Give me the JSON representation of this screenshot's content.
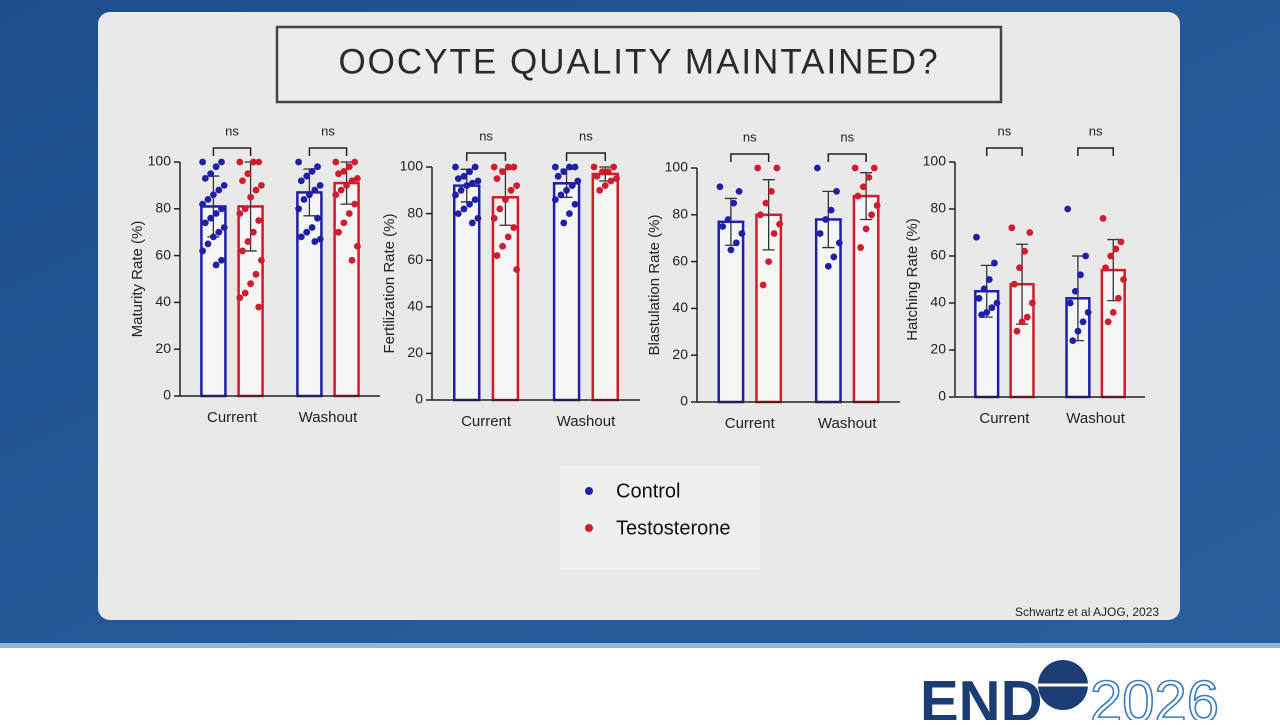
{
  "title": "OOCYTE QUALITY MAINTAINED?",
  "legend": {
    "control": "Control",
    "testosterone": "Testosterone"
  },
  "citation": "Schwartz et al AJOG, 2023",
  "logo": {
    "left": "END",
    "right": "2026"
  },
  "chart_data": [
    {
      "type": "bar",
      "y_label": "Maturity Rate (%)",
      "categories": [
        "Current",
        "Washout"
      ],
      "annotations": [
        "ns",
        "ns"
      ],
      "ylim": [
        0,
        100
      ],
      "yticks": [
        0,
        20,
        40,
        60,
        80,
        100
      ],
      "series": [
        {
          "name": "Control",
          "color": "#1f1fa8",
          "values": [
            81,
            87
          ],
          "errors": [
            13,
            10
          ],
          "points": [
            [
              100,
              100,
              98,
              95,
              93,
              90,
              88,
              86,
              84,
              82,
              80,
              78,
              76,
              74,
              72,
              70,
              68,
              65,
              62,
              58,
              56
            ],
            [
              100,
              98,
              96,
              94,
              92,
              90,
              88,
              86,
              84,
              80,
              76,
              72,
              70,
              68,
              67,
              66
            ]
          ]
        },
        {
          "name": "Testosterone",
          "color": "#d01c2c",
          "values": [
            81,
            91
          ],
          "errors": [
            19,
            9
          ],
          "points": [
            [
              100,
              100,
              100,
              95,
              92,
              90,
              88,
              85,
              80,
              78,
              75,
              70,
              66,
              62,
              58,
              52,
              48,
              44,
              42,
              38
            ],
            [
              100,
              100,
              98,
              96,
              95,
              93,
              92,
              90,
              88,
              86,
              82,
              78,
              74,
              70,
              64,
              58
            ]
          ]
        }
      ]
    },
    {
      "type": "bar",
      "y_label": "Fertilization Rate (%)",
      "categories": [
        "Current",
        "Washout"
      ],
      "annotations": [
        "ns",
        "ns"
      ],
      "ylim": [
        0,
        100
      ],
      "yticks": [
        0,
        20,
        40,
        60,
        80,
        100
      ],
      "series": [
        {
          "name": "Control",
          "color": "#1f1fa8",
          "values": [
            92,
            93
          ],
          "errors": [
            7,
            6
          ],
          "points": [
            [
              100,
              100,
              98,
              96,
              95,
              94,
              93,
              92,
              90,
              88,
              86,
              84,
              82,
              80,
              78,
              76
            ],
            [
              100,
              100,
              100,
              98,
              96,
              94,
              92,
              90,
              88,
              86,
              84,
              80,
              76
            ]
          ]
        },
        {
          "name": "Testosterone",
          "color": "#d01c2c",
          "values": [
            87,
            97
          ],
          "errors": [
            12,
            3
          ],
          "points": [
            [
              100,
              100,
              100,
              98,
              95,
              92,
              90,
              86,
              82,
              78,
              74,
              70,
              66,
              62,
              56
            ],
            [
              100,
              100,
              98,
              98,
              96,
              95,
              94,
              92,
              90
            ]
          ]
        }
      ]
    },
    {
      "type": "bar",
      "y_label": "Blastulation Rate (%)",
      "categories": [
        "Current",
        "Washout"
      ],
      "annotations": [
        "ns",
        "ns"
      ],
      "ylim": [
        0,
        100
      ],
      "yticks": [
        0,
        20,
        40,
        60,
        80,
        100
      ],
      "series": [
        {
          "name": "Control",
          "color": "#1f1fa8",
          "values": [
            77,
            78
          ],
          "errors": [
            10,
            12
          ],
          "points": [
            [
              92,
              90,
              85,
              78,
              75,
              72,
              68,
              65
            ],
            [
              100,
              90,
              82,
              78,
              72,
              68,
              62,
              58
            ]
          ]
        },
        {
          "name": "Testosterone",
          "color": "#d01c2c",
          "values": [
            80,
            88
          ],
          "errors": [
            15,
            10
          ],
          "points": [
            [
              100,
              100,
              90,
              85,
              80,
              76,
              72,
              60,
              50
            ],
            [
              100,
              100,
              96,
              92,
              88,
              84,
              80,
              74,
              66
            ]
          ]
        }
      ]
    },
    {
      "type": "bar",
      "y_label": "Hatching Rate (%)",
      "categories": [
        "Current",
        "Washout"
      ],
      "annotations": [
        "ns",
        "ns"
      ],
      "ylim": [
        0,
        100
      ],
      "yticks": [
        0,
        20,
        40,
        60,
        80,
        100
      ],
      "series": [
        {
          "name": "Control",
          "color": "#1f1fa8",
          "values": [
            45,
            42
          ],
          "errors": [
            11,
            18
          ],
          "points": [
            [
              68,
              57,
              50,
              46,
              42,
              40,
              38,
              36,
              35
            ],
            [
              80,
              60,
              52,
              45,
              40,
              36,
              32,
              28,
              24
            ]
          ]
        },
        {
          "name": "Testosterone",
          "color": "#d01c2c",
          "values": [
            48,
            54
          ],
          "errors": [
            17,
            13
          ],
          "points": [
            [
              72,
              70,
              62,
              55,
              48,
              40,
              34,
              32,
              28
            ],
            [
              76,
              66,
              63,
              60,
              55,
              50,
              42,
              36,
              32
            ]
          ]
        }
      ]
    }
  ]
}
